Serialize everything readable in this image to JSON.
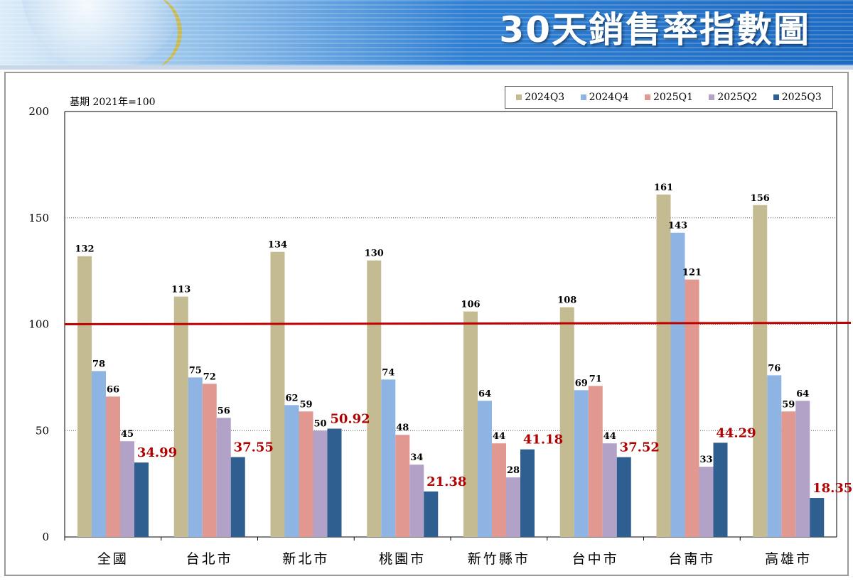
{
  "header": {
    "title": "30天銷售率指數圖"
  },
  "chart_data": {
    "type": "bar",
    "base_note": "基期 2021年=100",
    "categories": [
      "全國",
      "台北市",
      "新北市",
      "桃園市",
      "新竹縣市",
      "台中市",
      "台南市",
      "高雄市"
    ],
    "series": [
      {
        "name": "2024Q3",
        "color": "#c4bb92",
        "values": [
          132,
          113,
          134,
          130,
          106,
          108,
          161,
          156
        ]
      },
      {
        "name": "2024Q4",
        "color": "#8db4e2",
        "values": [
          78,
          75,
          62,
          74,
          64,
          69,
          143,
          76
        ]
      },
      {
        "name": "2025Q1",
        "color": "#e09890",
        "values": [
          66,
          72,
          59,
          48,
          44,
          71,
          121,
          59
        ]
      },
      {
        "name": "2025Q2",
        "color": "#b3a2c7",
        "values": [
          45,
          56,
          50,
          34,
          28,
          44,
          33,
          64
        ]
      },
      {
        "name": "2025Q3",
        "color": "#2f5e91",
        "values": [
          34.99,
          37.55,
          50.92,
          21.38,
          41.18,
          37.52,
          44.29,
          18.35
        ]
      }
    ],
    "value_labels": [
      [
        "132",
        "78",
        "66",
        "45",
        "34.99"
      ],
      [
        "113",
        "75",
        "72",
        "56",
        "37.55"
      ],
      [
        "134",
        "62",
        "59",
        "50",
        "50.92"
      ],
      [
        "130",
        "74",
        "48",
        "34",
        "21.38"
      ],
      [
        "106",
        "64",
        "44",
        "28",
        "41.18"
      ],
      [
        "108",
        "69",
        "71",
        "44",
        "37.52"
      ],
      [
        "161",
        "143",
        "121",
        "33",
        "44.29"
      ],
      [
        "156",
        "76",
        "59",
        "64",
        "18.35"
      ]
    ],
    "highlight_series": "2025Q3",
    "highlight_color": "#b00000",
    "ylim": [
      0,
      200
    ],
    "yticks": [
      0,
      50,
      100,
      150,
      200
    ],
    "reference_line": {
      "value": 100,
      "color": "#c00000"
    },
    "grid": true,
    "legend_position": "top-right"
  }
}
